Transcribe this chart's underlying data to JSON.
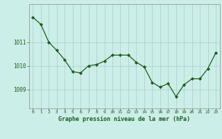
{
  "x": [
    0,
    1,
    2,
    3,
    4,
    5,
    6,
    7,
    8,
    9,
    10,
    11,
    12,
    13,
    14,
    15,
    16,
    17,
    18,
    19,
    20,
    21,
    22,
    23
  ],
  "y": [
    1012.05,
    1011.75,
    1011.0,
    1010.65,
    1010.25,
    1009.75,
    1009.7,
    1010.0,
    1010.05,
    1010.2,
    1010.45,
    1010.45,
    1010.45,
    1010.15,
    1009.95,
    1009.3,
    1009.1,
    1009.25,
    1008.7,
    1009.2,
    1009.45,
    1009.45,
    1009.88,
    1010.55
  ],
  "bg_color": "#cceee8",
  "line_color": "#1a5c1a",
  "marker_color": "#1a5c1a",
  "grid_color": "#aacccc",
  "xlabel": "Graphe pression niveau de la mer (hPa)",
  "xlabel_color": "#1a5c1a",
  "ytick_labels": [
    "1009",
    "1010",
    "1011"
  ],
  "ytick_values": [
    1009,
    1010,
    1011
  ],
  "xtick_labels": [
    "0",
    "1",
    "2",
    "3",
    "4",
    "5",
    "6",
    "7",
    "8",
    "9",
    "10",
    "11",
    "12",
    "13",
    "14",
    "15",
    "16",
    "17",
    "18",
    "19",
    "20",
    "21",
    "22",
    "23"
  ],
  "ylim": [
    1008.2,
    1012.6
  ],
  "xlim": [
    -0.5,
    23.5
  ]
}
